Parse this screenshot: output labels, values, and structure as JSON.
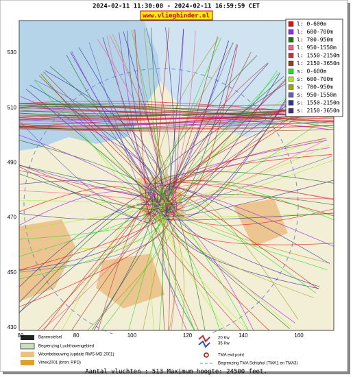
{
  "header": {
    "title": "2024-02-11 11:30:00 - 2024-02-11 16:59:59 CET",
    "site": "www.vlieghinder.nl"
  },
  "axes": {
    "x_ticks": [
      "60",
      "80",
      "100",
      "120",
      "140",
      "160"
    ],
    "y_ticks": [
      "530",
      "510",
      "490",
      "470",
      "450",
      "430"
    ]
  },
  "legend": {
    "items": [
      {
        "label": "l: 0-600m",
        "color": "#e01010"
      },
      {
        "label": "l: 600-700m",
        "color": "#a020f0"
      },
      {
        "label": "l: 700-950m",
        "color": "#207020"
      },
      {
        "label": "l: 950-1550m",
        "color": "#f06090"
      },
      {
        "label": "l: 1550-2150m",
        "color": "#c03040"
      },
      {
        "label": "l: 2150-3650m",
        "color": "#904020"
      },
      {
        "label": "s: 0-600m",
        "color": "#20e020"
      },
      {
        "label": "s: 600-700m",
        "color": "#a0f020"
      },
      {
        "label": "s: 700-950m",
        "color": "#a0a020"
      },
      {
        "label": "s: 950-1550m",
        "color": "#6060c0"
      },
      {
        "label": "s: 1550-2150m",
        "color": "#3030a0"
      },
      {
        "label": "s: 2150-3650m",
        "color": "#403080"
      }
    ]
  },
  "footer": {
    "items": [
      "Banenstelsel",
      "Begrenzing Luchthavengebied",
      "Woonbebouwing (update RWS-MD 2001)",
      "Vinex2001 (bron: RPD)",
      "20 Kw",
      "35 Kw",
      "TMA exit point",
      "Begrenzing TMA Schiphol  (TMA1 en TMA3)"
    ],
    "summary": "Aantal vluchten : 513 Maximum hoogte: 24500 feet."
  }
}
